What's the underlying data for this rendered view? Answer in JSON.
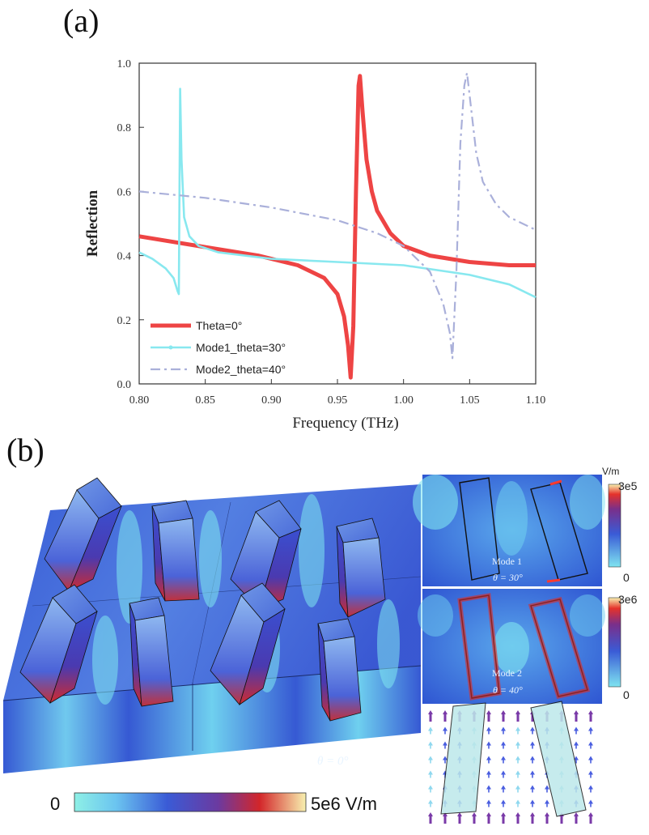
{
  "panel_a_label": "(a)",
  "panel_b_label": "(b)",
  "chart_data": {
    "type": "line",
    "xlabel": "Frequency (THz)",
    "ylabel": "Reflection",
    "xlim": [
      0.8,
      1.1
    ],
    "ylim": [
      0.0,
      1.0
    ],
    "xticks": [
      "0.80",
      "0.85",
      "0.90",
      "0.95",
      "1.00",
      "1.05",
      "1.10"
    ],
    "yticks": [
      "0.0",
      "0.2",
      "0.4",
      "0.6",
      "0.8",
      "1.0"
    ],
    "grid": false,
    "legend_position": "bottom-left",
    "series": [
      {
        "name": "Theta=0°",
        "color": "#ee4444",
        "style": "solid",
        "x": [
          0.8,
          0.83,
          0.86,
          0.89,
          0.92,
          0.94,
          0.95,
          0.955,
          0.958,
          0.96,
          0.962,
          0.964,
          0.966,
          0.967,
          0.969,
          0.972,
          0.976,
          0.98,
          0.99,
          1.0,
          1.02,
          1.05,
          1.08,
          1.1
        ],
        "y": [
          0.46,
          0.44,
          0.42,
          0.4,
          0.37,
          0.33,
          0.28,
          0.21,
          0.12,
          0.02,
          0.18,
          0.6,
          0.93,
          0.96,
          0.85,
          0.7,
          0.6,
          0.54,
          0.47,
          0.43,
          0.4,
          0.38,
          0.37,
          0.37
        ]
      },
      {
        "name": "Mode1_theta=30°",
        "color": "#88e8ef",
        "style": "solid",
        "x": [
          0.8,
          0.81,
          0.82,
          0.826,
          0.829,
          0.83,
          0.831,
          0.832,
          0.834,
          0.838,
          0.845,
          0.86,
          0.9,
          0.95,
          1.0,
          1.05,
          1.08,
          1.1
        ],
        "y": [
          0.41,
          0.39,
          0.36,
          0.33,
          0.29,
          0.28,
          0.92,
          0.7,
          0.52,
          0.46,
          0.43,
          0.41,
          0.39,
          0.38,
          0.37,
          0.34,
          0.31,
          0.27
        ]
      },
      {
        "name": "Mode2_theta=40°",
        "color": "#aab0da",
        "style": "dashdot",
        "x": [
          0.8,
          0.85,
          0.9,
          0.95,
          0.98,
          1.0,
          1.02,
          1.03,
          1.035,
          1.037,
          1.04,
          1.043,
          1.046,
          1.048,
          1.05,
          1.055,
          1.06,
          1.07,
          1.08,
          1.1
        ],
        "y": [
          0.6,
          0.58,
          0.55,
          0.51,
          0.47,
          0.43,
          0.35,
          0.25,
          0.16,
          0.08,
          0.35,
          0.75,
          0.93,
          0.97,
          0.9,
          0.72,
          0.63,
          0.56,
          0.52,
          0.48
        ]
      }
    ]
  },
  "figure_b": {
    "main_annotation": "θ = 0°",
    "colorbar_min": "0",
    "colorbar_max": "5e6 V/m",
    "inset_unit": "V/m",
    "inset1": {
      "mode": "Mode 1",
      "angle": "θ = 30°",
      "cb_max": "3e5",
      "cb_min": "0"
    },
    "inset2": {
      "mode": "Mode 2",
      "angle": "θ = 40°",
      "cb_max": "3e6",
      "cb_min": "0"
    },
    "colors": {
      "field_blue": "#3a5bd6",
      "field_cyan": "#7fe4f0",
      "field_red": "#d3262a",
      "field_yellow": "#f8f1b0"
    }
  }
}
